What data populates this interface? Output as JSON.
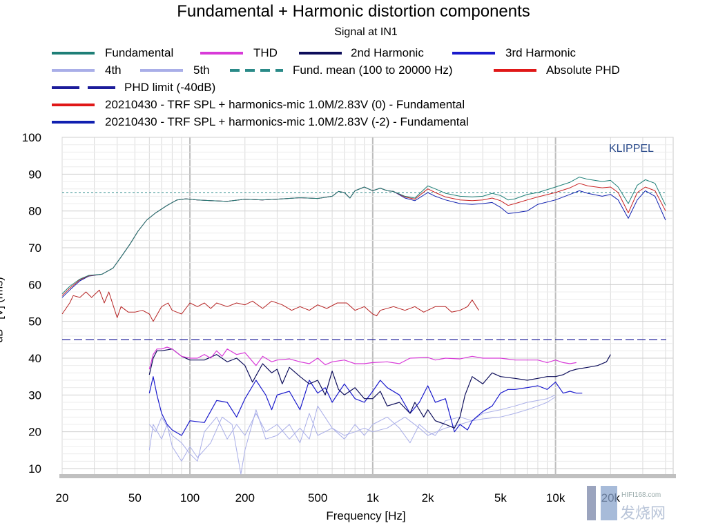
{
  "chart_data": {
    "type": "line",
    "title": "Fundamental + Harmonic distortion components",
    "subtitle": "Signal at IN1",
    "xlabel": "Frequency [Hz]",
    "ylabel": "dB - [V] (rms)",
    "xscale": "log",
    "xlim": [
      20,
      44000
    ],
    "ylim": [
      8,
      100
    ],
    "grid": true,
    "legend_placement": "top",
    "watermark_brand": "KLIPPEL",
    "watermark_site": "HIFI168.com",
    "watermark_cn": "发烧网",
    "xticks": [
      {
        "v": 20,
        "label": "20"
      },
      {
        "v": 50,
        "label": "50"
      },
      {
        "v": 100,
        "label": "100"
      },
      {
        "v": 200,
        "label": "200"
      },
      {
        "v": 500,
        "label": "500"
      },
      {
        "v": 1000,
        "label": "1k"
      },
      {
        "v": 2000,
        "label": "2k"
      },
      {
        "v": 5000,
        "label": "5k"
      },
      {
        "v": 10000,
        "label": "10k"
      },
      {
        "v": 20000,
        "label": "20k"
      }
    ],
    "yticks": [
      10,
      20,
      30,
      40,
      50,
      60,
      70,
      80,
      90,
      100
    ],
    "legend": [
      {
        "key": "fund",
        "label": "Fundamental"
      },
      {
        "key": "thd",
        "label": "THD"
      },
      {
        "key": "h2",
        "label": "2nd Harmonic"
      },
      {
        "key": "h3",
        "label": "3rd Harmonic"
      },
      {
        "key": "h4",
        "label": "4th"
      },
      {
        "key": "h5",
        "label": "5th"
      },
      {
        "key": "mean",
        "label": "Fund. mean (100 to 20000 Hz)"
      },
      {
        "key": "phd",
        "label": "Absolute PHD"
      },
      {
        "key": "limit",
        "label": "PHD limit (-40dB)"
      },
      {
        "key": "s0",
        "label": "20210430 - TRF SPL + harmonics-mic 1.0M/2.83V (0) - Fundamental"
      },
      {
        "key": "s2",
        "label": "20210430 - TRF SPL + harmonics-mic 1.0M/2.83V (-2) - Fundamental"
      }
    ],
    "colors": {
      "fund": "#1e7f77",
      "thd": "#d83ad8",
      "h2": "#0d0d5a",
      "h3": "#1a1acc",
      "h4": "#a9aee8",
      "h5": "#a9aee8",
      "mean": "#2a8a88",
      "phd": "#b52222",
      "phd_legend": "#e01818",
      "limit": "#1c1c9a",
      "s0": "#c82020",
      "s2": "#1020b0"
    },
    "fund_mean_db": 85,
    "phd_limit_db": 45,
    "fund_freq": [
      20,
      22,
      25,
      28,
      33,
      38,
      42,
      47,
      52,
      58,
      65,
      75,
      85,
      95,
      110,
      130,
      160,
      200,
      250,
      300,
      400,
      500,
      600,
      650,
      700,
      750,
      800,
      900,
      1000,
      1100,
      1200,
      1300,
      1500,
      1700,
      2000,
      2200,
      2500,
      3000,
      3500,
      4000,
      4500,
      5000,
      5500,
      6000,
      7000,
      8000,
      10000,
      12000,
      13500,
      15000,
      18000,
      20000,
      22000,
      25000,
      28000,
      31000,
      35000,
      40000
    ],
    "series": [
      {
        "key": "fund",
        "name": "Fundamental",
        "values": [
          57.5,
          59.5,
          61.5,
          62.5,
          62.8,
          64.5,
          67.5,
          71,
          74.5,
          77.5,
          79.5,
          81.5,
          83,
          83.3,
          83,
          82.8,
          82.6,
          83.2,
          83,
          83.2,
          83.6,
          83.4,
          84,
          85.3,
          85,
          83.5,
          85.5,
          86.5,
          85.5,
          86.2,
          85.5,
          85.3,
          84,
          83.5,
          86.8,
          86,
          84.8,
          84,
          83.8,
          84,
          84.8,
          84.2,
          83,
          83.3,
          84.5,
          85,
          86.5,
          87.8,
          89.2,
          88.6,
          88,
          88.3,
          86.5,
          82,
          87,
          88.5,
          87.5,
          81.5
        ]
      },
      {
        "key": "s0",
        "name": "(0) - Fundamental",
        "values": [
          57,
          59,
          61.3,
          62.4,
          62.8,
          64.5,
          67.5,
          71,
          74.5,
          77.5,
          79.5,
          81.5,
          83,
          83.3,
          83,
          82.8,
          82.6,
          83.2,
          83,
          83.2,
          83.6,
          83.4,
          84,
          85.3,
          85,
          83.5,
          85.5,
          86.5,
          85.5,
          86.2,
          85.5,
          85.3,
          83.8,
          83.2,
          86,
          85,
          83.8,
          83,
          82.8,
          83,
          83.5,
          82.8,
          81.5,
          82,
          83,
          83.8,
          85,
          86.3,
          87.5,
          86.8,
          86.3,
          86.5,
          85,
          79.5,
          85,
          86.5,
          85.5,
          80
        ]
      },
      {
        "key": "s2",
        "name": "(-2) - Fundamental",
        "values": [
          56.5,
          58.5,
          61,
          62.3,
          62.8,
          64.5,
          67.5,
          71,
          74.5,
          77.5,
          79.5,
          81.5,
          83,
          83.3,
          83,
          82.8,
          82.6,
          83.2,
          83,
          83.2,
          83.6,
          83.4,
          84,
          85.3,
          85,
          83.5,
          85.5,
          86.5,
          85.5,
          86.2,
          85.5,
          85.3,
          83.5,
          82.8,
          85,
          84,
          83,
          82,
          81.8,
          82,
          82.3,
          81,
          79.3,
          79.5,
          80,
          81.8,
          83,
          84.5,
          85.5,
          84.8,
          84,
          84.5,
          83,
          78,
          83,
          85.5,
          84,
          77.5
        ]
      },
      {
        "key": "phd",
        "name": "Absolute PHD",
        "freq": [
          20,
          22,
          23,
          25,
          27,
          29,
          32,
          34,
          36,
          40,
          42,
          46,
          50,
          55,
          60,
          63,
          70,
          76,
          80,
          90,
          100,
          110,
          120,
          130,
          140,
          160,
          180,
          200,
          220,
          250,
          280,
          320,
          360,
          400,
          450,
          500,
          560,
          640,
          720,
          800,
          900,
          1000,
          1050,
          1100,
          1300,
          1500,
          1700,
          1900,
          2200,
          2500,
          2700,
          3000,
          3300,
          3500,
          3800
        ],
        "values": [
          52,
          55,
          57,
          56.5,
          58,
          56.5,
          58.5,
          55,
          58,
          51,
          54,
          52.5,
          52.5,
          53,
          52,
          50,
          54,
          55,
          53,
          52,
          55,
          54,
          55,
          53.5,
          55,
          54,
          55,
          54.5,
          55.5,
          53.5,
          55.5,
          54.5,
          53,
          54,
          53,
          54.5,
          53.5,
          55,
          55,
          53,
          54,
          52,
          51.5,
          53,
          54,
          53,
          54,
          52.5,
          54,
          54,
          52.5,
          53,
          54,
          55.8,
          53
        ]
      },
      {
        "key": "thd",
        "name": "THD",
        "freq": [
          60,
          63,
          66,
          70,
          75,
          80,
          90,
          100,
          110,
          120,
          130,
          140,
          150,
          160,
          180,
          200,
          230,
          250,
          280,
          300,
          350,
          400,
          450,
          500,
          550,
          600,
          700,
          800,
          900,
          1000,
          1200,
          1400,
          1600,
          2000,
          2200,
          2500,
          3000,
          3500,
          4000,
          5000,
          6000,
          7000,
          8000,
          9000,
          10000,
          11000,
          12000,
          13000
        ],
        "values": [
          37,
          41,
          42.5,
          42.5,
          43,
          42.5,
          40.5,
          40,
          40,
          41,
          40,
          42,
          40.5,
          42.5,
          41,
          41.5,
          38,
          40.5,
          39,
          39.5,
          39.8,
          39,
          38.5,
          40,
          38.2,
          39,
          39.5,
          38.5,
          38.5,
          38.8,
          39,
          38.5,
          40,
          40.2,
          39.5,
          40,
          39.8,
          40.5,
          40,
          40,
          39.5,
          39.5,
          39.5,
          38.8,
          39.5,
          38.8,
          38.5,
          38.8
        ]
      },
      {
        "key": "h2",
        "name": "2nd Harmonic",
        "freq": [
          60,
          63,
          66,
          70,
          80,
          90,
          100,
          120,
          140,
          160,
          180,
          200,
          220,
          250,
          280,
          300,
          320,
          350,
          400,
          450,
          500,
          550,
          600,
          650,
          700,
          800,
          900,
          1000,
          1100,
          1200,
          1400,
          1600,
          1700,
          1900,
          2000,
          2200,
          2500,
          2800,
          3000,
          3200,
          3500,
          4000,
          4500,
          5000,
          6000,
          7000,
          8000,
          9000,
          10000,
          11000,
          12000,
          13000,
          15000,
          17000,
          19000,
          20000
        ],
        "values": [
          35.5,
          40,
          42,
          42,
          42.5,
          40.5,
          39.5,
          39.5,
          41,
          39,
          40,
          38,
          33.5,
          38.5,
          36,
          37,
          33,
          37.5,
          35,
          33,
          34,
          30,
          36.5,
          31.5,
          30,
          32,
          29,
          29,
          31,
          27,
          28,
          25,
          28,
          24,
          26,
          23,
          22,
          21,
          24,
          30,
          35,
          33,
          36,
          35,
          34.5,
          34,
          34.5,
          35,
          35,
          35.5,
          36.5,
          37,
          37.5,
          38,
          39,
          41
        ]
      },
      {
        "key": "h3",
        "name": "3rd Harmonic",
        "freq": [
          60,
          63,
          66,
          70,
          75,
          80,
          90,
          100,
          120,
          140,
          160,
          180,
          200,
          230,
          260,
          280,
          300,
          350,
          400,
          450,
          500,
          550,
          600,
          700,
          800,
          900,
          1000,
          1100,
          1200,
          1400,
          1600,
          1800,
          2000,
          2200,
          2500,
          2800,
          3000,
          3300,
          3500,
          4000,
          4500,
          5000,
          5500,
          6000,
          7000,
          8000,
          9000,
          10000,
          11000,
          12000,
          13000,
          14000
        ],
        "values": [
          30.5,
          35,
          30,
          25,
          22,
          20.5,
          19,
          23,
          22.5,
          28.5,
          28,
          24,
          29,
          34,
          30,
          26,
          30,
          31,
          26,
          34,
          30.5,
          32,
          28,
          33,
          29,
          28,
          31,
          34,
          32,
          30,
          25,
          28,
          32.5,
          28,
          29,
          20,
          22,
          20.5,
          23,
          25.5,
          27,
          30.5,
          31.5,
          31.5,
          32,
          32.5,
          31.5,
          33.5,
          30.5,
          31,
          30.5,
          30.5
        ]
      },
      {
        "key": "h4",
        "name": "4th",
        "freq": [
          60,
          63,
          70,
          75,
          80,
          90,
          100,
          110,
          130,
          150,
          170,
          190,
          200,
          230,
          260,
          300,
          350,
          400,
          450,
          500,
          600,
          700,
          800,
          900,
          1000,
          1200,
          1400,
          1600,
          1800,
          2000,
          2200,
          2500,
          3000,
          3500,
          4000,
          5000,
          6000,
          7000,
          8000,
          9000,
          10000
        ],
        "values": [
          15,
          22,
          18,
          22,
          16,
          12,
          16,
          13,
          17,
          24,
          22,
          8.5,
          15,
          26,
          18,
          19,
          22,
          17,
          25,
          19,
          21,
          18,
          22,
          19,
          22,
          24,
          21,
          17,
          22,
          20,
          19,
          23,
          24,
          23,
          25,
          26,
          27,
          28,
          28.5,
          29,
          30
        ]
      },
      {
        "key": "h5",
        "name": "5th",
        "freq": [
          60,
          65,
          70,
          80,
          90,
          100,
          110,
          120,
          140,
          160,
          180,
          200,
          230,
          260,
          300,
          350,
          400,
          450,
          500,
          600,
          700,
          800,
          900,
          1000,
          1200,
          1500,
          1800,
          2000,
          2500,
          3000,
          3500,
          4000,
          5000,
          6000,
          7000,
          8000,
          9000,
          10000
        ],
        "values": [
          22,
          20,
          24,
          19,
          17,
          14,
          12,
          20,
          24,
          18,
          22,
          19,
          25,
          20,
          22,
          18,
          21,
          18,
          27,
          21,
          19,
          20,
          21,
          20,
          21,
          24,
          21,
          19,
          21,
          22,
          23,
          23.5,
          24,
          25,
          26,
          27,
          28,
          29.5
        ]
      }
    ]
  }
}
